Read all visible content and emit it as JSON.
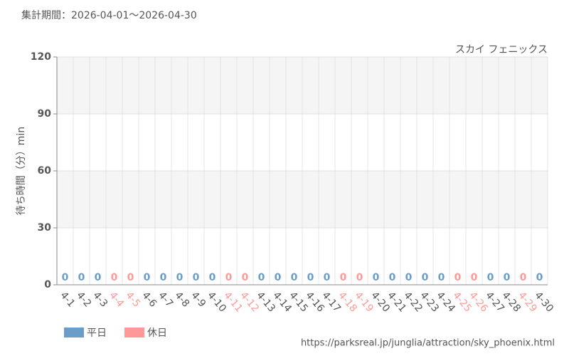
{
  "chart_data": {
    "type": "bar",
    "title": "集計期間：2026-04-01～2026-04-30",
    "subtitle": "スカイ フェニックス",
    "y_label": "待ち時間（分）min",
    "source": "https://parksreal.jp/junglia/attraction/sky_phoenix.html",
    "categories": [
      "4-1",
      "4-2",
      "4-3",
      "4-4",
      "4-5",
      "4-6",
      "4-7",
      "4-8",
      "4-9",
      "4-10",
      "4-11",
      "4-12",
      "4-13",
      "4-14",
      "4-15",
      "4-16",
      "4-17",
      "4-18",
      "4-19",
      "4-20",
      "4-21",
      "4-22",
      "4-23",
      "4-24",
      "4-25",
      "4-26",
      "4-27",
      "4-28",
      "4-29",
      "4-30"
    ],
    "series": [
      {
        "name": "平日",
        "color": "#6b9dc8",
        "values": [
          0,
          0,
          0,
          null,
          null,
          0,
          0,
          0,
          0,
          0,
          null,
          null,
          0,
          0,
          0,
          0,
          0,
          null,
          null,
          0,
          0,
          0,
          0,
          0,
          null,
          null,
          0,
          0,
          null,
          0
        ]
      },
      {
        "name": "休日",
        "color": "#ff9999",
        "values": [
          null,
          null,
          null,
          0,
          0,
          null,
          null,
          null,
          null,
          null,
          0,
          0,
          null,
          null,
          null,
          null,
          null,
          0,
          0,
          null,
          null,
          null,
          null,
          null,
          0,
          0,
          null,
          null,
          0,
          null
        ]
      }
    ],
    "ylim": [
      0,
      120
    ],
    "yticks": [
      0,
      30,
      60,
      90,
      120
    ],
    "grid": true
  }
}
